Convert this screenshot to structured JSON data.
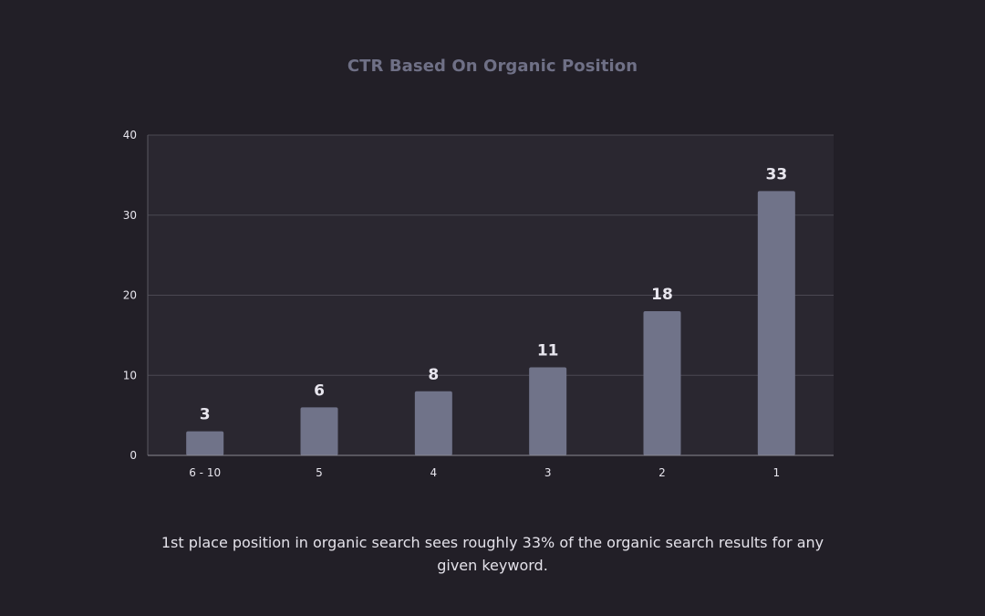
{
  "colors": {
    "background": "#221f27",
    "plot_background": "#2a2730",
    "bar": "#707389",
    "gridline": "#4a4852",
    "axis_text": "#e8e6ee",
    "title": "#6f7086",
    "caption": "#e4e2ea"
  },
  "chart_data": {
    "type": "bar",
    "title": "CTR Based On Organic Position",
    "xlabel": "",
    "ylabel": "",
    "categories": [
      "6 - 10",
      "5",
      "4",
      "3",
      "2",
      "1"
    ],
    "values": [
      3,
      6,
      8,
      11,
      18,
      33
    ],
    "data_labels": [
      "3",
      "6",
      "8",
      "11",
      "18",
      "33"
    ],
    "ylim": [
      0,
      40
    ],
    "yticks": [
      0,
      10,
      20,
      30,
      40
    ],
    "ytick_labels": [
      "0",
      "10",
      "20",
      "30",
      "40"
    ],
    "grid": true,
    "legend": "none"
  },
  "caption": "1st place position in organic search sees roughly 33% of the organic search results for any given keyword."
}
